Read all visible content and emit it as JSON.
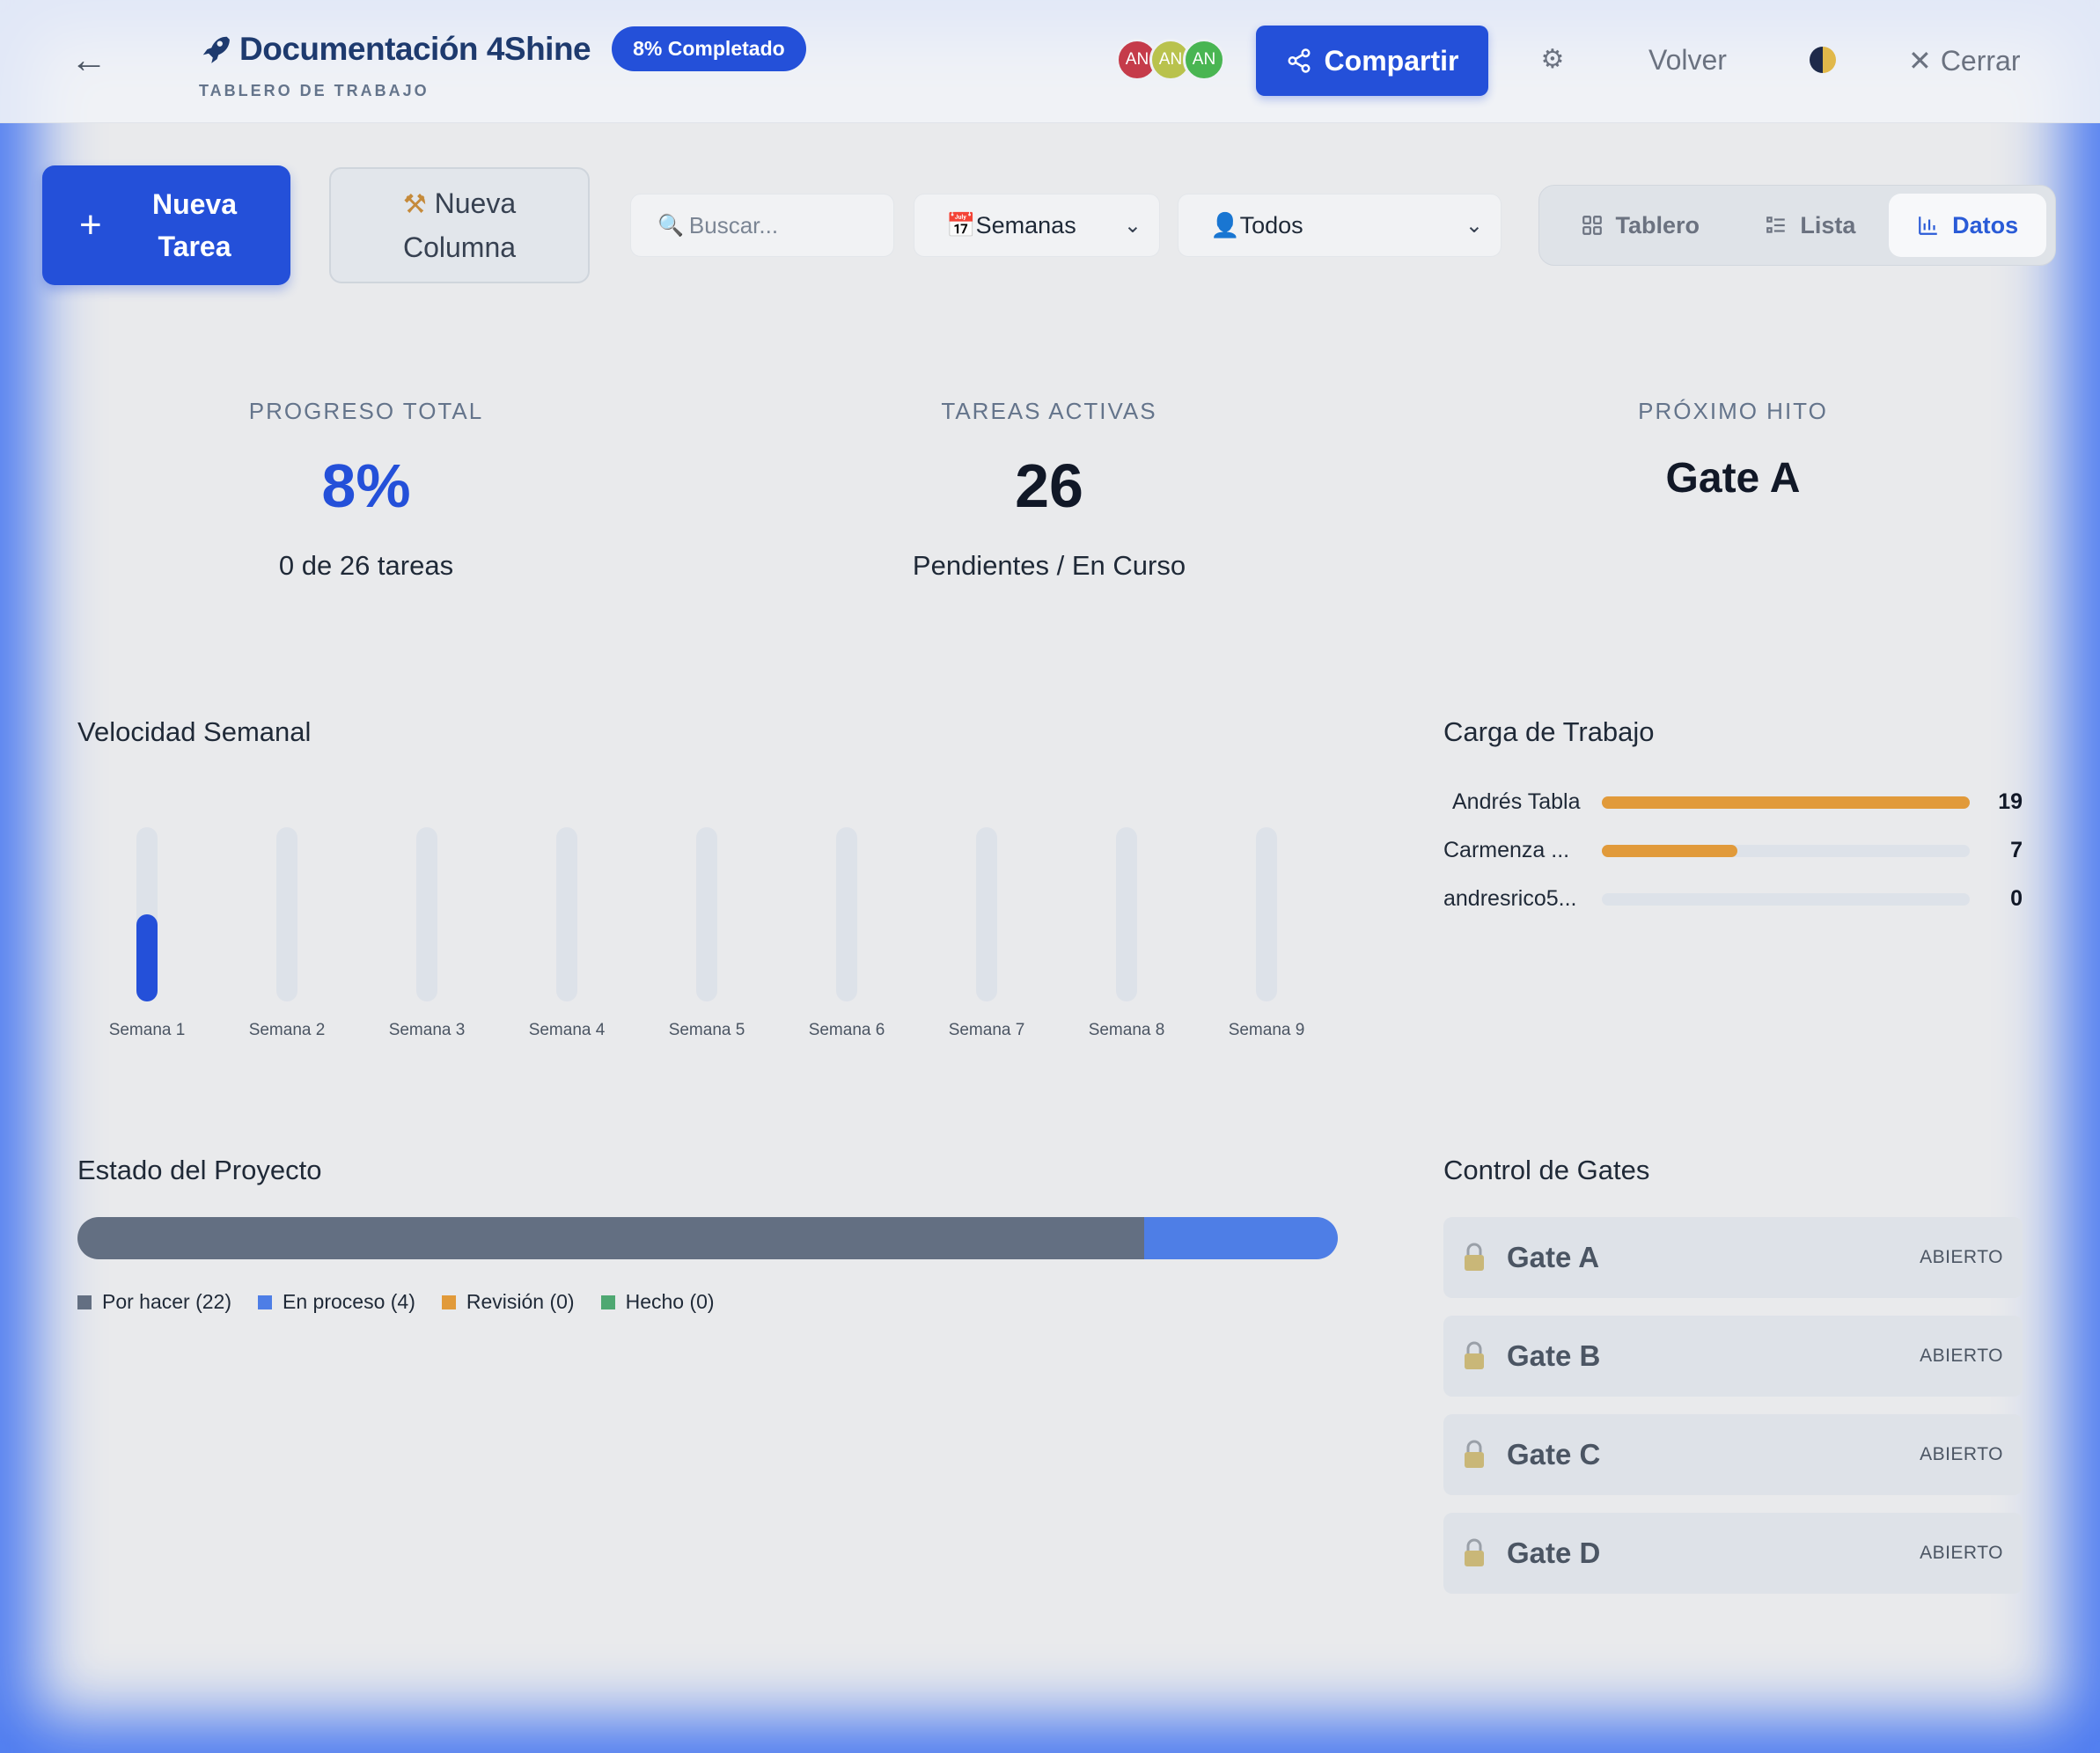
{
  "header": {
    "title": "Documentación 4Shine",
    "progress_badge": "8% Completado",
    "subtitle": "TABLERO DE TRABAJO",
    "avatars": [
      {
        "initials": "AN",
        "color": "#c53b4a"
      },
      {
        "initials": "AN",
        "color": "#b9c24d"
      },
      {
        "initials": "AN",
        "color": "#49b552"
      }
    ],
    "share_label": "Compartir",
    "back_label": "Volver",
    "close_label": "Cerrar"
  },
  "toolbar": {
    "new_task_label": "Nueva Tarea",
    "new_column_label": "Nueva Columna",
    "search_placeholder": "Buscar...",
    "period_select": "Semanas",
    "assignee_select": "Todos",
    "views": [
      "Tablero",
      "Lista",
      "Datos"
    ],
    "active_view": "Datos"
  },
  "stats": {
    "progress": {
      "label": "PROGRESO TOTAL",
      "value": "8%",
      "sub": "0 de 26 tareas"
    },
    "active": {
      "label": "TAREAS ACTIVAS",
      "value": "26",
      "sub": "Pendientes / En Curso"
    },
    "milestone": {
      "label": "PRÓXIMO HITO",
      "value": "Gate A"
    }
  },
  "sections": {
    "velocity": "Velocidad Semanal",
    "workload": "Carga de Trabajo",
    "status": "Estado del Proyecto",
    "gates": "Control de Gates"
  },
  "chart_data": {
    "type": "bar",
    "title": "Velocidad Semanal",
    "categories": [
      "Semana 1",
      "Semana 2",
      "Semana 3",
      "Semana 4",
      "Semana 5",
      "Semana 6",
      "Semana 7",
      "Semana 8",
      "Semana 9"
    ],
    "values": [
      0.5,
      0,
      0,
      0,
      0,
      0,
      0,
      0,
      0
    ],
    "ylim": [
      0,
      1
    ],
    "bar_color": "#2450d9",
    "track_color": "#dde2e9"
  },
  "workload": [
    {
      "name": "Andrés Tabla",
      "value": 19,
      "max": 19
    },
    {
      "name": "Carmenza ...",
      "value": 7,
      "max": 19
    },
    {
      "name": "andresrico5...",
      "value": 0,
      "max": 19
    }
  ],
  "status": {
    "segments": [
      {
        "label": "Por hacer (22)",
        "count": 22,
        "color": "#636f82"
      },
      {
        "label": "En proceso (4)",
        "count": 4,
        "color": "#4e7ee6"
      },
      {
        "label": "Revisión (0)",
        "count": 0,
        "color": "#e19a3a"
      },
      {
        "label": "Hecho (0)",
        "count": 0,
        "color": "#4fa872"
      }
    ]
  },
  "gates": [
    {
      "name": "Gate A",
      "status": "ABIERTO"
    },
    {
      "name": "Gate B",
      "status": "ABIERTO"
    },
    {
      "name": "Gate C",
      "status": "ABIERTO"
    },
    {
      "name": "Gate D",
      "status": "ABIERTO"
    }
  ]
}
